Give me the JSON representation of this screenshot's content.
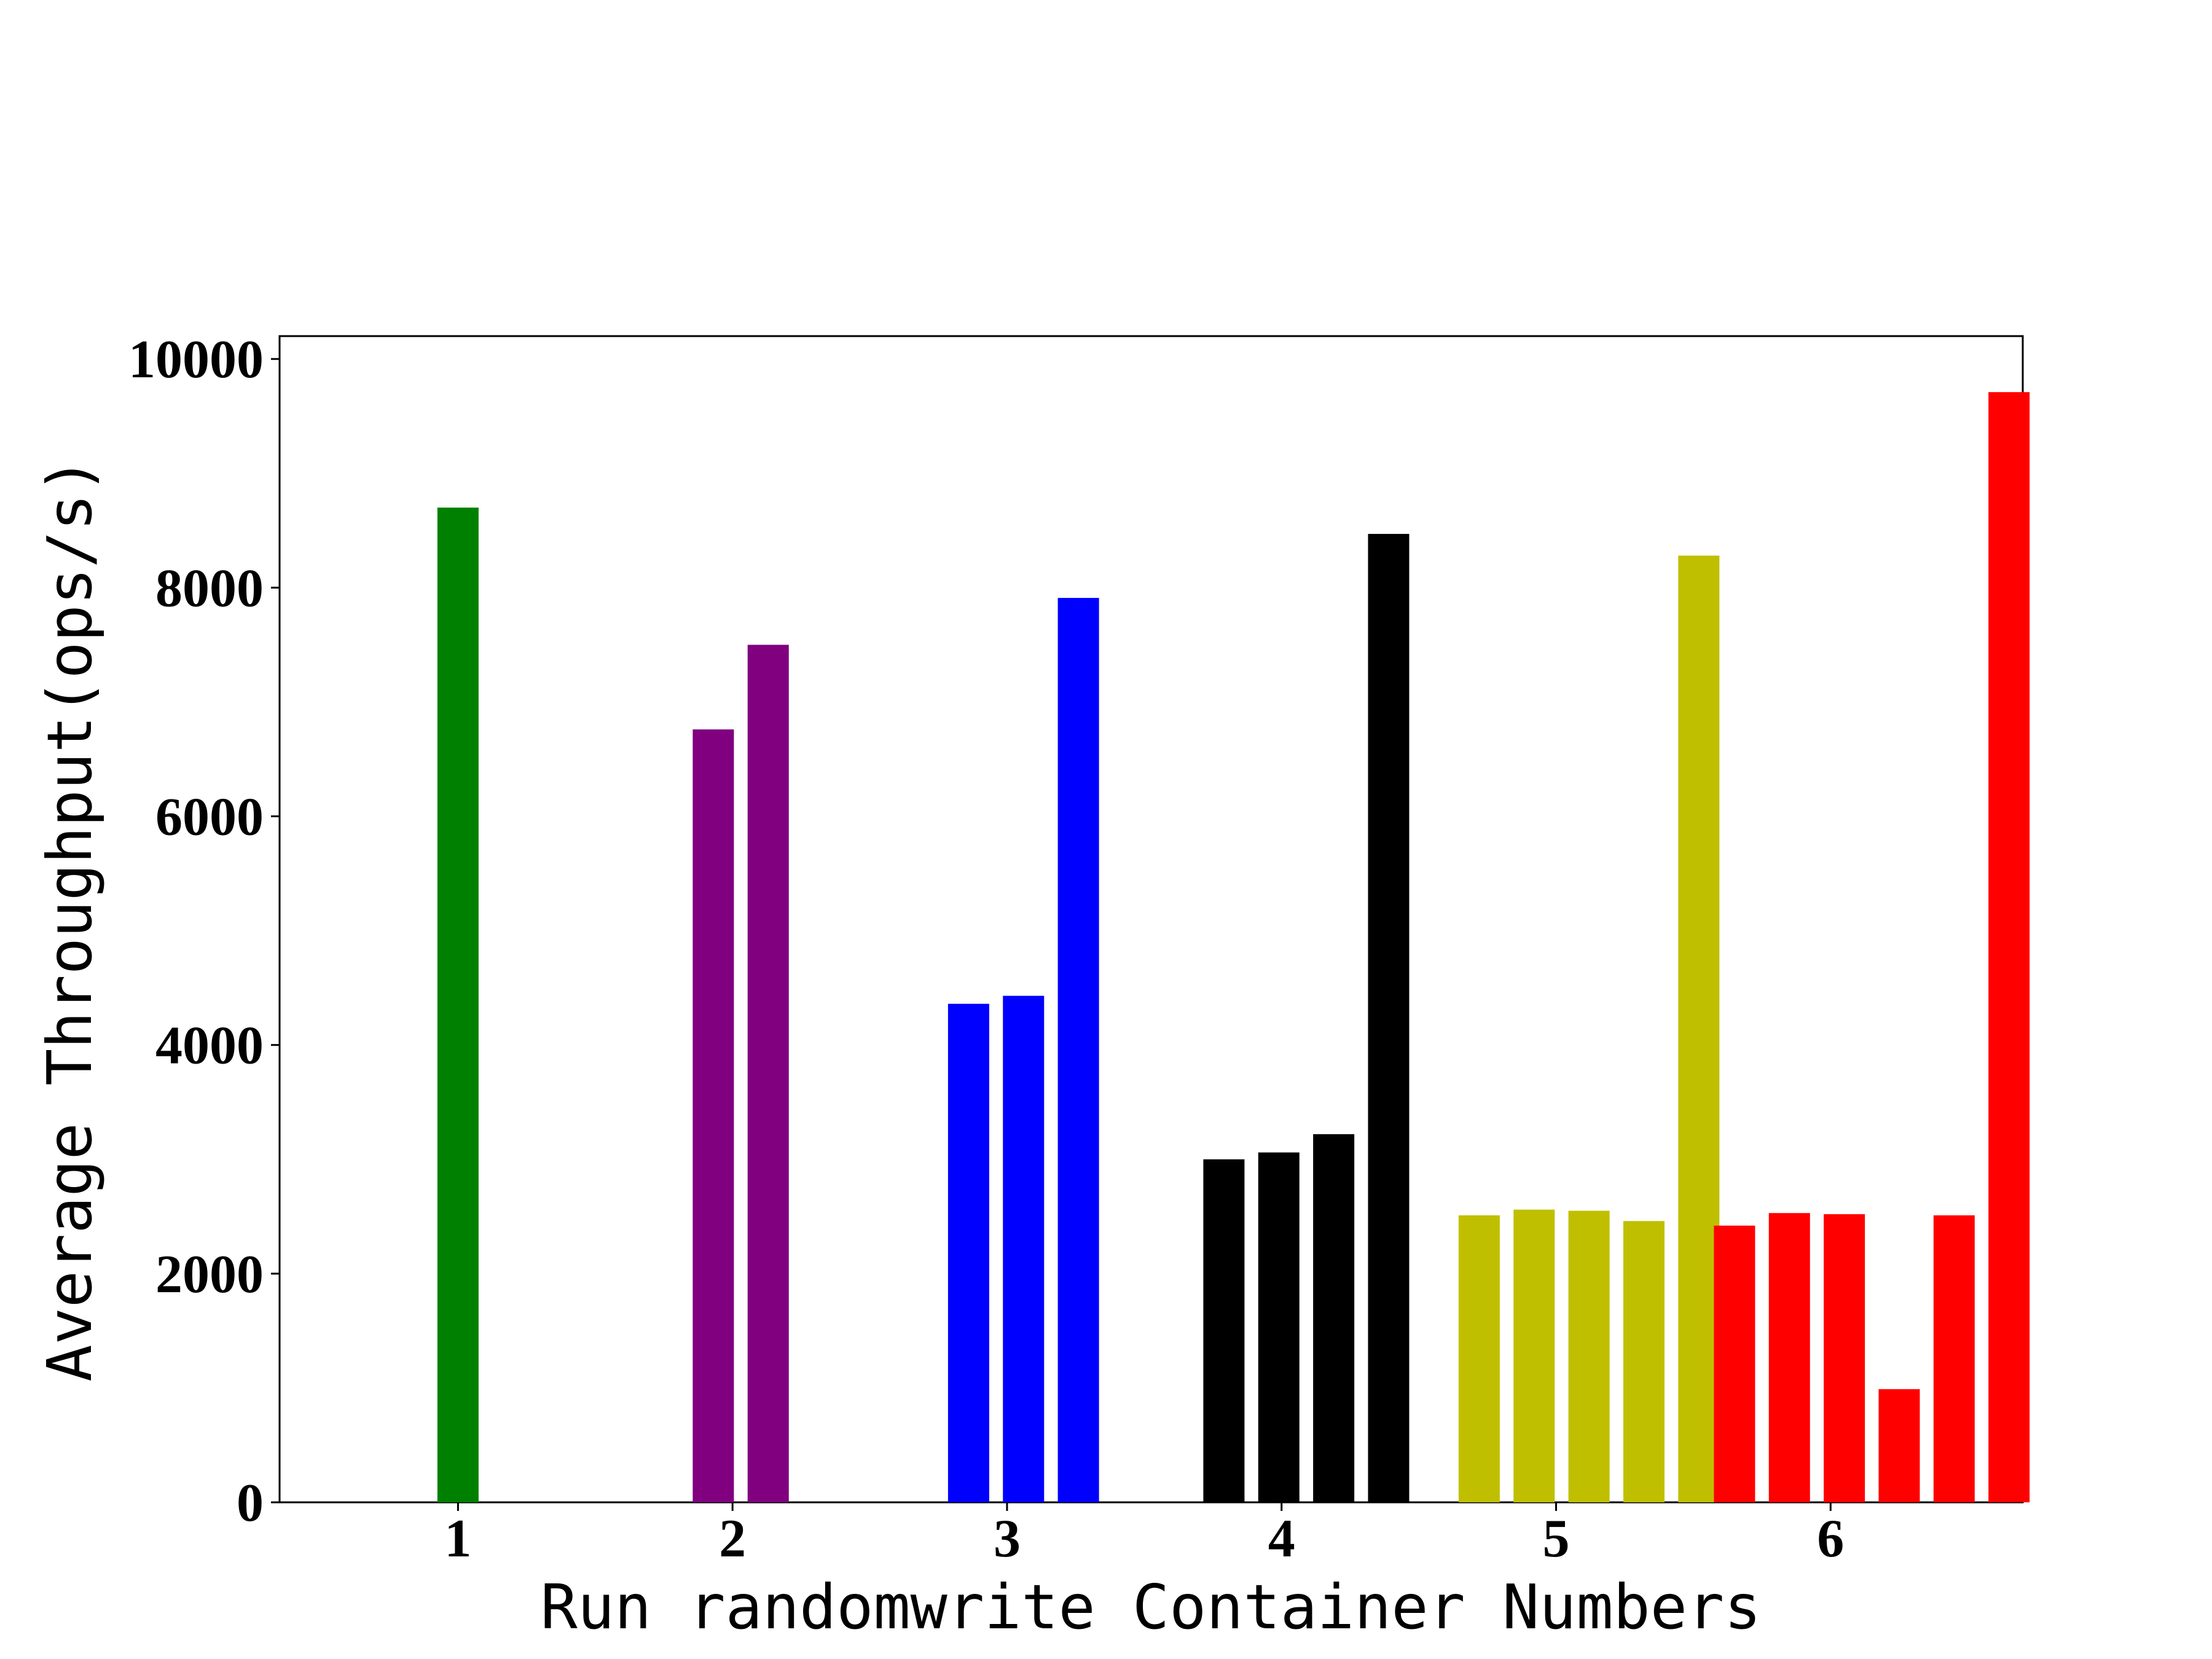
{
  "chart_data": {
    "type": "bar",
    "xlabel": "Run randomwrite Container Numbers",
    "ylabel": "Average Throughput(ops/s)",
    "title": "",
    "ylim": [
      0,
      10200
    ],
    "xlim": [
      0.35,
      6.7
    ],
    "yticks": [
      0,
      2000,
      4000,
      6000,
      8000,
      10000
    ],
    "xticks": [
      1,
      2,
      3,
      4,
      5,
      6
    ],
    "grid": false,
    "legend": "none",
    "groups": [
      {
        "category": "1",
        "color": "#008000",
        "bars": [
          {
            "x": 1.0,
            "value": 8700
          }
        ]
      },
      {
        "category": "2",
        "color": "#800080",
        "bars": [
          {
            "x": 1.93,
            "value": 6760
          },
          {
            "x": 2.13,
            "value": 7500
          }
        ]
      },
      {
        "category": "3",
        "color": "#0000ff",
        "bars": [
          {
            "x": 2.86,
            "value": 4360
          },
          {
            "x": 3.06,
            "value": 4430
          },
          {
            "x": 3.26,
            "value": 7910
          }
        ]
      },
      {
        "category": "4",
        "color": "#000000",
        "bars": [
          {
            "x": 3.79,
            "value": 3000
          },
          {
            "x": 3.99,
            "value": 3060
          },
          {
            "x": 4.19,
            "value": 3220
          },
          {
            "x": 4.39,
            "value": 8470
          }
        ]
      },
      {
        "category": "5",
        "color": "#bfbf00",
        "bars": [
          {
            "x": 4.72,
            "value": 2510
          },
          {
            "x": 4.92,
            "value": 2560
          },
          {
            "x": 5.12,
            "value": 2550
          },
          {
            "x": 5.32,
            "value": 2460
          },
          {
            "x": 5.52,
            "value": 8280
          }
        ]
      },
      {
        "category": "6",
        "color": "#ff0000",
        "bars": [
          {
            "x": 5.65,
            "value": 2420
          },
          {
            "x": 5.85,
            "value": 2530
          },
          {
            "x": 6.05,
            "value": 2520
          },
          {
            "x": 6.25,
            "value": 990
          },
          {
            "x": 6.45,
            "value": 2510
          },
          {
            "x": 6.65,
            "value": 9710
          }
        ]
      }
    ]
  }
}
